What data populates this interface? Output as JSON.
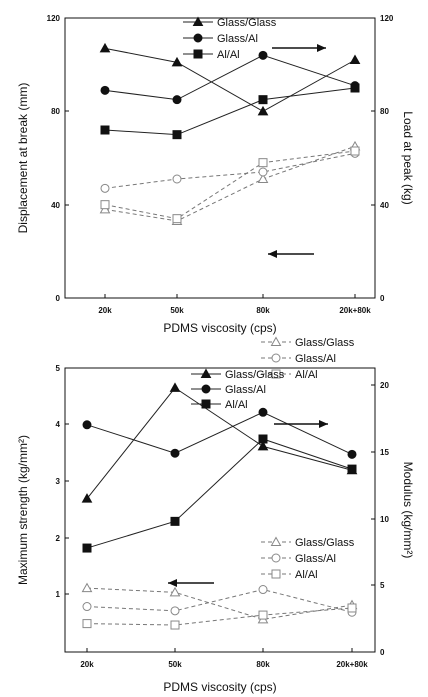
{
  "chart_data": [
    {
      "type": "line",
      "categories": [
        "20k",
        "50k",
        "80k",
        "20k+80k"
      ],
      "xlabel": "PDMS viscosity (cps)",
      "ylabel_left": "Displacement at break (mm)",
      "ylabel_right": "Load at peak (kg)",
      "ylim_left": [
        0,
        120
      ],
      "ylim_right": [
        0,
        120
      ],
      "yticks_left": [
        "0",
        "40",
        "80",
        "120"
      ],
      "yticks_right": [
        "0",
        "40",
        "80",
        "120"
      ],
      "series": [
        {
          "name": "Glass/Glass",
          "axis": "right",
          "marker": "triangle-filled",
          "line": "solid",
          "values": [
            107,
            101,
            80,
            102
          ]
        },
        {
          "name": "Glass/Al",
          "axis": "right",
          "marker": "circle-filled",
          "line": "solid",
          "values": [
            89,
            85,
            104,
            91
          ]
        },
        {
          "name": "Al/Al",
          "axis": "right",
          "marker": "square-filled",
          "line": "solid",
          "values": [
            72,
            70,
            85,
            90
          ]
        },
        {
          "name": "Glass/Glass",
          "axis": "left",
          "marker": "triangle-open",
          "line": "dashed",
          "values": [
            38,
            33,
            51,
            65
          ]
        },
        {
          "name": "Glass/Al",
          "axis": "left",
          "marker": "circle-open",
          "line": "dashed",
          "values": [
            47,
            51,
            54,
            62
          ]
        },
        {
          "name": "Al/Al",
          "axis": "left",
          "marker": "square-open",
          "line": "dashed",
          "values": [
            40,
            34,
            58,
            63
          ]
        }
      ]
    },
    {
      "type": "line",
      "categories": [
        "20k",
        "50k",
        "80k",
        "20k+80k"
      ],
      "xlabel": "PDMS viscosity (cps)",
      "ylabel_left": "Maximum strength (kg/mm²)",
      "ylabel_right": "Modulus (kg/mm²)",
      "ylim_left": [
        0,
        5
      ],
      "ylim_right": [
        0,
        20
      ],
      "yticks_left": [
        "1",
        "2",
        "3",
        "4",
        "5"
      ],
      "yticks_right": [
        "0",
        "5",
        "10",
        "15",
        "20"
      ],
      "series": [
        {
          "name": "Glass/Glass",
          "axis": "left",
          "marker": "triangle-filled",
          "line": "solid",
          "values": [
            2.7,
            4.65,
            3.62,
            3.2
          ]
        },
        {
          "name": "Glass/Al",
          "axis": "left",
          "marker": "circle-filled",
          "line": "solid",
          "values": [
            4.0,
            3.5,
            4.22,
            3.48
          ]
        },
        {
          "name": "Al/Al",
          "axis": "left",
          "marker": "square-filled",
          "line": "solid",
          "values": [
            1.83,
            2.3,
            3.75,
            3.22
          ]
        },
        {
          "name": "Glass/Glass",
          "axis": "right",
          "marker": "triangle-open",
          "line": "dashed",
          "values": [
            4.5,
            4.2,
            2.3,
            3.3
          ]
        },
        {
          "name": "Glass/Al",
          "axis": "right",
          "marker": "circle-open",
          "line": "dashed",
          "values": [
            3.2,
            2.9,
            4.4,
            2.8
          ]
        },
        {
          "name": "Al/Al",
          "axis": "right",
          "marker": "square-open",
          "line": "dashed",
          "values": [
            2.0,
            1.9,
            2.6,
            3.1
          ]
        }
      ]
    }
  ]
}
